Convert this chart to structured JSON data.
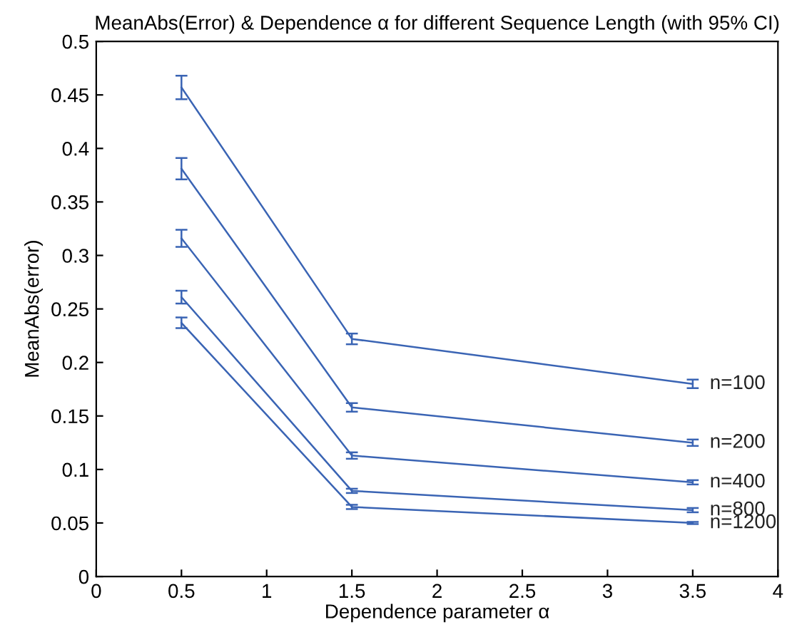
{
  "chart_data": {
    "type": "line",
    "title": "MeanAbs(Error) & Dependence α for different Sequence Length (with 95% CI)",
    "xlabel": "Dependence parameter α",
    "ylabel": "MeanAbs(error)",
    "x": [
      0.5,
      1.5,
      3.5
    ],
    "series": [
      {
        "name": "n=100",
        "color": "#3a64b4",
        "values": [
          0.457,
          0.222,
          0.18
        ],
        "errors": [
          0.011,
          0.005,
          0.004
        ]
      },
      {
        "name": "n=200",
        "color": "#3a64b4",
        "values": [
          0.381,
          0.158,
          0.125
        ],
        "errors": [
          0.01,
          0.004,
          0.003
        ]
      },
      {
        "name": "n=400",
        "color": "#3a64b4",
        "values": [
          0.316,
          0.113,
          0.088
        ],
        "errors": [
          0.008,
          0.003,
          0.002
        ]
      },
      {
        "name": "n=800",
        "color": "#3a64b4",
        "values": [
          0.261,
          0.08,
          0.062
        ],
        "errors": [
          0.006,
          0.002,
          0.002
        ]
      },
      {
        "name": "n=1200",
        "color": "#3a64b4",
        "values": [
          0.237,
          0.065,
          0.05
        ],
        "errors": [
          0.005,
          0.002,
          0.001
        ]
      }
    ],
    "xlim": [
      0,
      4
    ],
    "xticks": [
      0,
      0.5,
      1,
      1.5,
      2,
      2.5,
      3,
      3.5,
      4
    ],
    "ylim": [
      0,
      0.5
    ],
    "yticks": [
      0,
      0.05,
      0.1,
      0.15,
      0.2,
      0.25,
      0.3,
      0.35,
      0.4,
      0.45,
      0.5
    ],
    "grid": false,
    "legend": false,
    "marker": "none",
    "line_style": "solid"
  }
}
